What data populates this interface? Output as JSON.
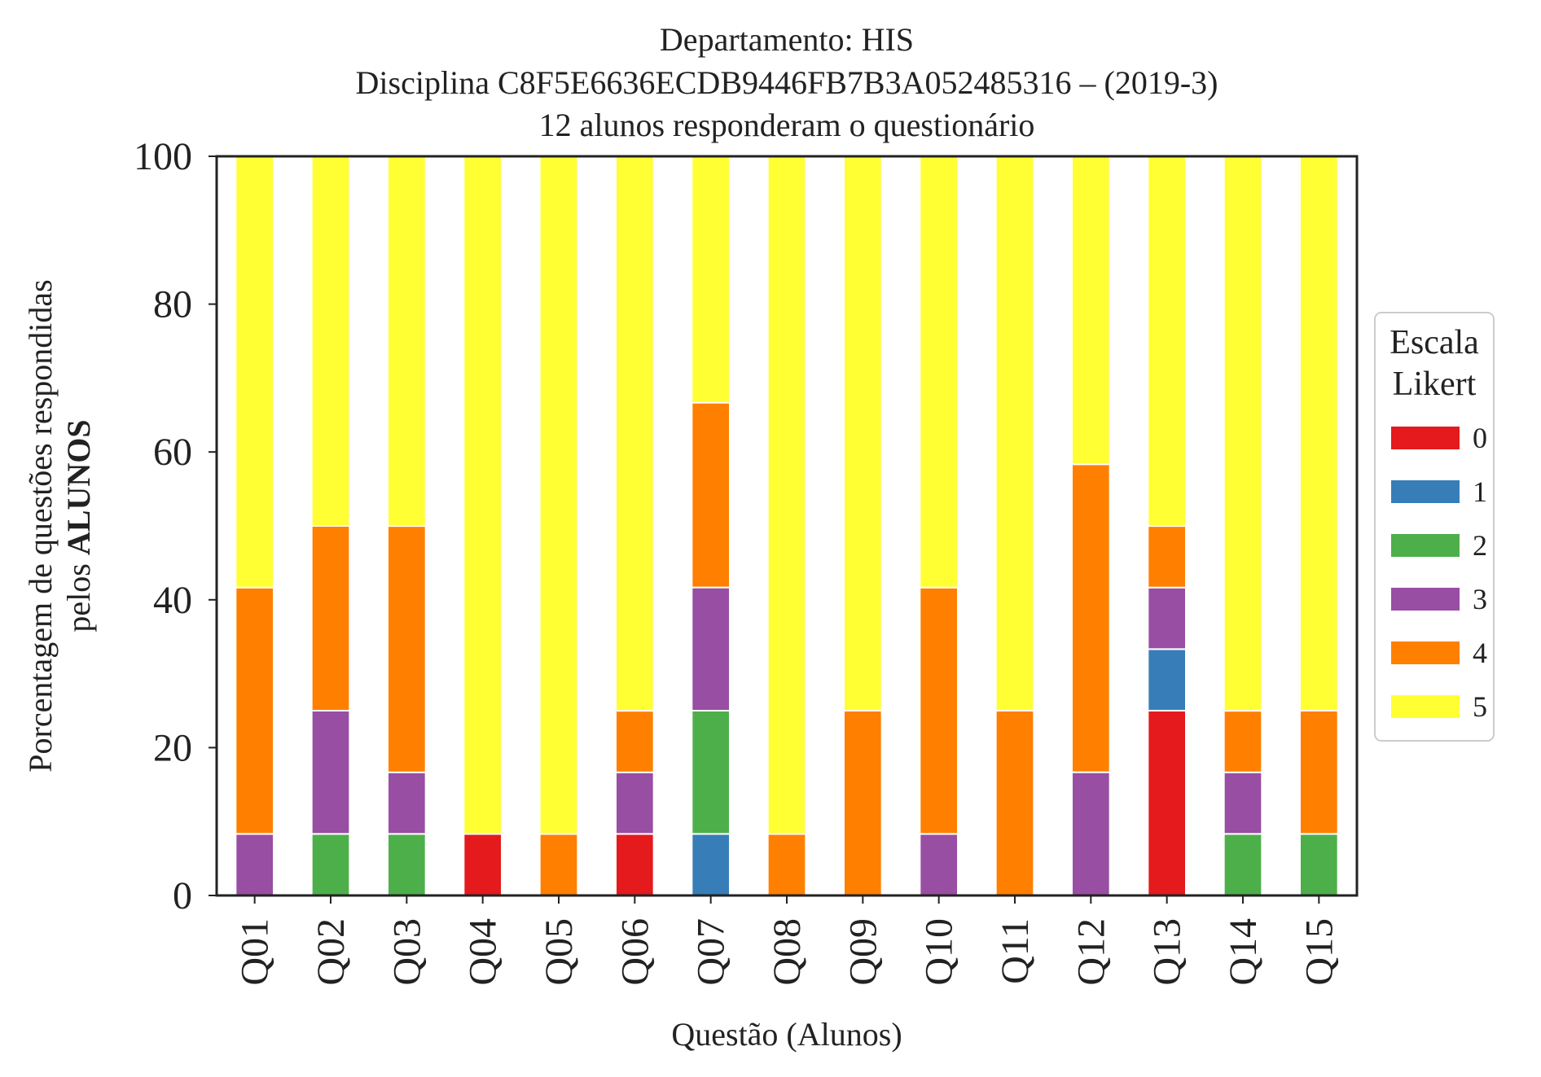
{
  "chart_data": {
    "type": "bar",
    "stacked": true,
    "title": [
      "Departamento: HIS",
      "Disciplina C8F5E6636ECDB9446FB7B3A052485316 – (2019-3)",
      "12 alunos responderam o questionário"
    ],
    "xlabel": "Questão (Alunos)",
    "ylabel_line1": "Porcentagem de questões respondidas",
    "ylabel_line2_prefix": "pelos ",
    "ylabel_line2_bold": "ALUNOS",
    "ylim": [
      0,
      100
    ],
    "yticks": [
      0,
      20,
      40,
      60,
      80,
      100
    ],
    "grid": false,
    "legend": {
      "title": [
        "Escala",
        "Likert"
      ],
      "position": "right"
    },
    "categories": [
      "Q01",
      "Q02",
      "Q03",
      "Q04",
      "Q05",
      "Q06",
      "Q07",
      "Q08",
      "Q09",
      "Q10",
      "Q11",
      "Q12",
      "Q13",
      "Q14",
      "Q15"
    ],
    "series": [
      {
        "name": "0",
        "color": "#e41a1c",
        "values": [
          0,
          0,
          0,
          8.33,
          0,
          8.33,
          0,
          0,
          0,
          0,
          0,
          0,
          25,
          0,
          0
        ]
      },
      {
        "name": "1",
        "color": "#377eb8",
        "values": [
          0,
          0,
          0,
          0,
          0,
          0,
          8.33,
          0,
          0,
          0,
          0,
          0,
          8.33,
          0,
          0
        ]
      },
      {
        "name": "2",
        "color": "#4daf4a",
        "values": [
          0,
          8.33,
          8.33,
          0,
          0,
          0,
          16.67,
          0,
          0,
          0,
          0,
          0,
          0,
          8.33,
          8.33
        ]
      },
      {
        "name": "3",
        "color": "#984ea3",
        "values": [
          8.33,
          16.67,
          8.33,
          0,
          0,
          8.33,
          16.67,
          0,
          0,
          8.33,
          0,
          16.67,
          8.33,
          8.33,
          0
        ]
      },
      {
        "name": "4",
        "color": "#ff7f00",
        "values": [
          33.33,
          25,
          33.33,
          0,
          8.33,
          8.33,
          25,
          8.33,
          25,
          33.33,
          25,
          41.67,
          8.33,
          8.33,
          16.67
        ]
      },
      {
        "name": "5",
        "color": "#ffff33",
        "values": [
          58.33,
          50,
          50,
          91.67,
          91.67,
          75,
          33.33,
          91.67,
          75,
          58.33,
          75,
          41.67,
          50,
          75,
          75
        ]
      }
    ]
  }
}
